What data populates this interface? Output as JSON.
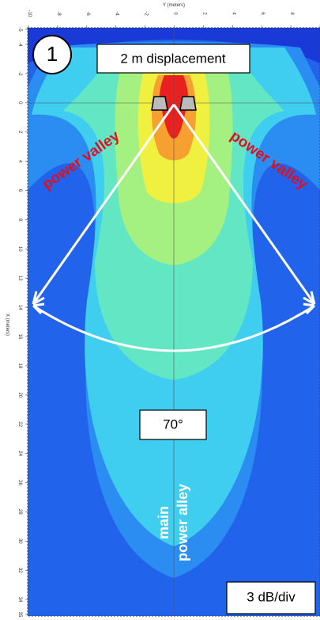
{
  "axes": {
    "top_title": "Y (meters)",
    "left_title": "X (meters)",
    "top_ticks": [
      "-10",
      "-8",
      "-6",
      "-4",
      "-2",
      "0",
      "2",
      "4",
      "6",
      "8",
      "10"
    ],
    "left_ticks": [
      "-5",
      "-4",
      "-2",
      "0",
      "2",
      "4",
      "6",
      "8",
      "10",
      "12",
      "14",
      "16",
      "18",
      "20",
      "22",
      "24",
      "26",
      "28",
      "30",
      "32",
      "34",
      "35"
    ]
  },
  "annotations": {
    "badge": "1",
    "displacement": "2 m displacement",
    "valley_left": "power valley",
    "valley_right": "power valley",
    "angle": "70°",
    "alley_line1": "main",
    "alley_line2": "power alley",
    "scale": "3 dB/div"
  }
}
